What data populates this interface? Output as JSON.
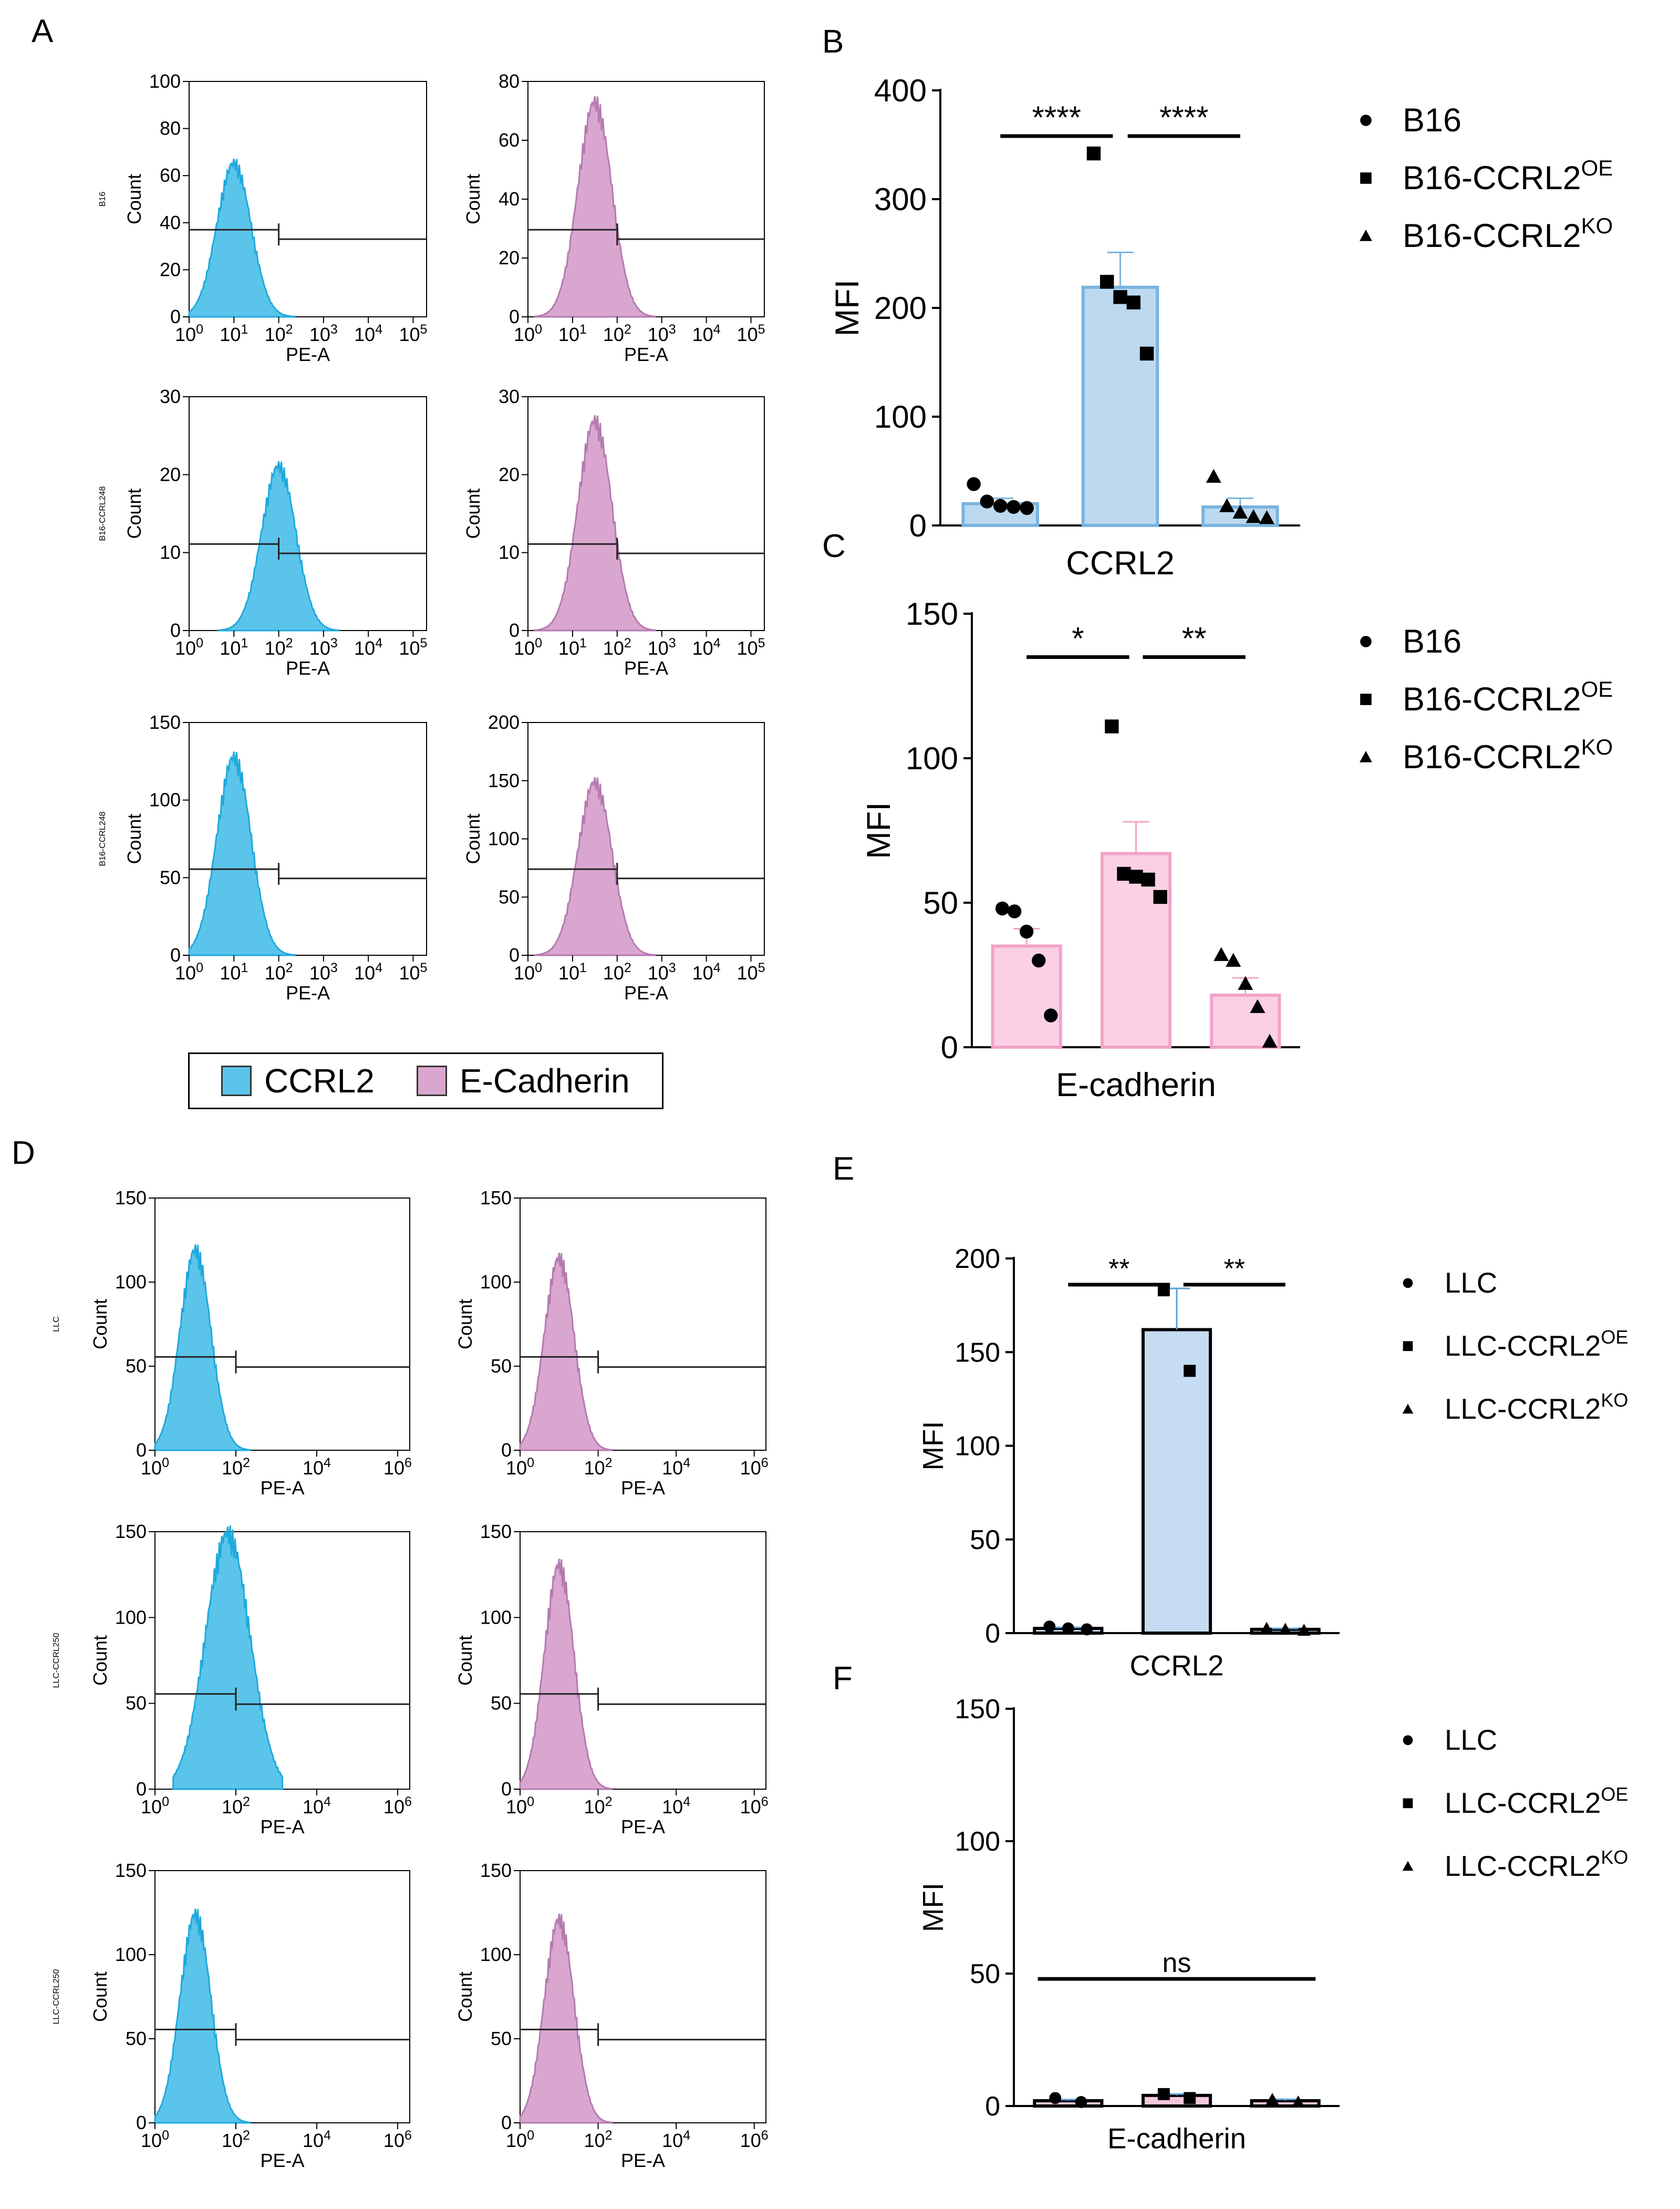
{
  "panel_labels": {
    "A": "A",
    "B": "B",
    "C": "C",
    "D": "D",
    "E": "E",
    "F": "F"
  },
  "legend_box": {
    "items": [
      {
        "label": "CCRL2",
        "color": "#5bc4ea"
      },
      {
        "label": "E-Cadherin",
        "color": "#d9a6cf"
      }
    ]
  },
  "chart_data": [
    {
      "id": "A",
      "type": "histogram",
      "cell_line": "B16",
      "x_label": "PE-A",
      "y_label": "Count",
      "x_ticks": [
        "10^0",
        "10^1",
        "10^2",
        "10^3",
        "10^4",
        "10^5"
      ],
      "gate_marker": "10^2",
      "rows": [
        {
          "label": "B16",
          "sup": "",
          "plots": [
            {
              "marker": "CCRL2",
              "color": "#5bc4ea",
              "ylim": [
                0,
                100
              ],
              "y_ticks": [
                0,
                20,
                40,
                60,
                80,
                100
              ],
              "peak_x": "10^1",
              "peak_count": 68
            },
            {
              "marker": "E-Cadherin",
              "color": "#d9a6cf",
              "ylim": [
                0,
                80
              ],
              "y_ticks": [
                0,
                20,
                40,
                60,
                80
              ],
              "peak_x": "10^1.5",
              "peak_count": 76
            }
          ]
        },
        {
          "label": "B16-CCRL2",
          "sup": "OE",
          "plots": [
            {
              "marker": "CCRL2",
              "color": "#5bc4ea",
              "ylim": [
                0,
                30
              ],
              "y_ticks": [
                0,
                10,
                20,
                30
              ],
              "peak_x": "10^2",
              "peak_count": 22
            },
            {
              "marker": "E-Cadherin",
              "color": "#d9a6cf",
              "ylim": [
                0,
                30
              ],
              "y_ticks": [
                0,
                10,
                20,
                30
              ],
              "peak_x": "10^1.5",
              "peak_count": 28
            }
          ]
        },
        {
          "label": "B16-CCRL2",
          "sup": "KO",
          "plots": [
            {
              "marker": "CCRL2",
              "color": "#5bc4ea",
              "ylim": [
                0,
                150
              ],
              "y_ticks": [
                0,
                50,
                100,
                150
              ],
              "peak_x": "10^1",
              "peak_count": 133
            },
            {
              "marker": "E-Cadherin",
              "color": "#d9a6cf",
              "ylim": [
                0,
                200
              ],
              "y_ticks": [
                0,
                50,
                100,
                150,
                200
              ],
              "peak_x": "10^1.5",
              "peak_count": 155
            }
          ]
        }
      ]
    },
    {
      "id": "B",
      "type": "bar",
      "xlabel": "CCRL2",
      "ylabel": "MFI",
      "ylim": [
        0,
        400
      ],
      "y_ticks": [
        0,
        100,
        200,
        300,
        400
      ],
      "bar_fill": "#bcd9f0",
      "bar_edge": "#7bb3de",
      "groups": [
        {
          "name": "B16",
          "marker": "circle",
          "mean": 20,
          "sem": 5,
          "points": [
            38,
            22,
            18,
            17,
            16
          ]
        },
        {
          "name": "B16-CCRL2",
          "sup": "OE",
          "marker": "square",
          "mean": 219,
          "sem": 32,
          "points": [
            342,
            224,
            210,
            205,
            158
          ]
        },
        {
          "name": "B16-CCRL2",
          "sup": "KO",
          "marker": "triangle",
          "mean": 17,
          "sem": 8,
          "points": [
            45,
            18,
            12,
            8,
            7
          ]
        }
      ],
      "significance": [
        {
          "from": 0,
          "to": 1,
          "label": "****",
          "y": 358
        },
        {
          "from": 1,
          "to": 2,
          "label": "****",
          "y": 358
        }
      ]
    },
    {
      "id": "C",
      "type": "bar",
      "xlabel": "E-cadherin",
      "ylabel": "MFI",
      "ylim": [
        0,
        150
      ],
      "y_ticks": [
        0,
        50,
        100,
        150
      ],
      "bar_fill": "#fbd0e4",
      "bar_edge": "#f2a3c7",
      "groups": [
        {
          "name": "B16",
          "marker": "circle",
          "mean": 35,
          "sem": 6,
          "points": [
            48,
            47,
            40,
            30,
            11
          ]
        },
        {
          "name": "B16-CCRL2",
          "sup": "OE",
          "marker": "square",
          "mean": 67,
          "sem": 11,
          "points": [
            111,
            60,
            59,
            58,
            52
          ]
        },
        {
          "name": "B16-CCRL2",
          "sup": "KO",
          "marker": "triangle",
          "mean": 18,
          "sem": 6,
          "points": [
            32,
            30,
            22,
            14,
            2
          ]
        }
      ],
      "significance": [
        {
          "from": 0,
          "to": 1,
          "label": "*",
          "y": 135
        },
        {
          "from": 1,
          "to": 2,
          "label": "**",
          "y": 135
        }
      ]
    },
    {
      "id": "D",
      "type": "histogram",
      "cell_line": "LLC",
      "x_label": "PE-A",
      "y_label": "Count",
      "x_ticks": [
        "10^0",
        "10^2",
        "10^4",
        "10^6"
      ],
      "gate_marker": "10^2",
      "rows": [
        {
          "label": "LLC",
          "sup": "",
          "plots": [
            {
              "marker": "CCRL2",
              "color": "#5bc4ea",
              "ylim": [
                0,
                150
              ],
              "y_ticks": [
                0,
                50,
                100,
                150
              ],
              "peak_x": "10^1",
              "peak_count": 124
            },
            {
              "marker": "E-Cadherin",
              "color": "#d9a6cf",
              "ylim": [
                0,
                150
              ],
              "y_ticks": [
                0,
                50,
                100,
                150
              ],
              "peak_x": "10^1",
              "peak_count": 119
            }
          ]
        },
        {
          "label": "LLC-CCRL2",
          "sup": "OE",
          "plots": [
            {
              "marker": "CCRL2",
              "color": "#5bc4ea",
              "ylim": [
                0,
                150
              ],
              "y_ticks": [
                0,
                50,
                100,
                150
              ],
              "peak_x": "10^1.8",
              "peak_count": 155
            },
            {
              "marker": "E-Cadherin",
              "color": "#d9a6cf",
              "ylim": [
                0,
                150
              ],
              "y_ticks": [
                0,
                50,
                100,
                150
              ],
              "peak_x": "10^1",
              "peak_count": 136
            }
          ]
        },
        {
          "label": "LLC-CCRL2",
          "sup": "KO",
          "plots": [
            {
              "marker": "CCRL2",
              "color": "#5bc4ea",
              "ylim": [
                0,
                150
              ],
              "y_ticks": [
                0,
                50,
                100,
                150
              ],
              "peak_x": "10^1",
              "peak_count": 129
            },
            {
              "marker": "E-Cadherin",
              "color": "#d9a6cf",
              "ylim": [
                0,
                150
              ],
              "y_ticks": [
                0,
                50,
                100,
                150
              ],
              "peak_x": "10^1",
              "peak_count": 126
            }
          ]
        }
      ]
    },
    {
      "id": "E",
      "type": "bar",
      "xlabel": "CCRL2",
      "ylabel": "MFI",
      "ylim": [
        0,
        200
      ],
      "y_ticks": [
        0,
        50,
        100,
        150,
        200
      ],
      "bar_fill": "#c5dcf2",
      "bar_edge": "#000000",
      "groups": [
        {
          "name": "LLC",
          "marker": "circle",
          "mean": 2.5,
          "sem": 0.5,
          "points": [
            3.5,
            2.5,
            2
          ]
        },
        {
          "name": "LLC-CCRL2",
          "sup": "OE",
          "marker": "square",
          "mean": 162,
          "sem": 22,
          "points": [
            183,
            140
          ]
        },
        {
          "name": "LLC-CCRL2",
          "sup": "KO",
          "marker": "triangle",
          "mean": 2,
          "sem": 0.5,
          "points": [
            2.5,
            2,
            1.5
          ]
        }
      ],
      "significance": [
        {
          "from": 0,
          "to": 1,
          "label": "**",
          "y": 186
        },
        {
          "from": 1,
          "to": 2,
          "label": "**",
          "y": 186
        }
      ]
    },
    {
      "id": "F",
      "type": "bar",
      "xlabel": "E-cadherin",
      "ylabel": "MFI",
      "ylim": [
        0,
        150
      ],
      "y_ticks": [
        0,
        50,
        100,
        150
      ],
      "bar_fill": "#f6c7dc",
      "bar_edge": "#000000",
      "groups": [
        {
          "name": "LLC",
          "marker": "circle",
          "mean": 2,
          "sem": 0.4,
          "points": [
            3,
            1.5
          ]
        },
        {
          "name": "LLC-CCRL2",
          "sup": "OE",
          "marker": "square",
          "mean": 4,
          "sem": 0.5,
          "points": [
            4.5,
            3
          ]
        },
        {
          "name": "LLC-CCRL2",
          "sup": "KO",
          "marker": "triangle",
          "mean": 2,
          "sem": 0.5,
          "points": [
            2.5,
            1.5
          ]
        }
      ],
      "significance": [
        {
          "from": 0,
          "to": 2,
          "label": "ns",
          "y": 48
        }
      ]
    }
  ]
}
